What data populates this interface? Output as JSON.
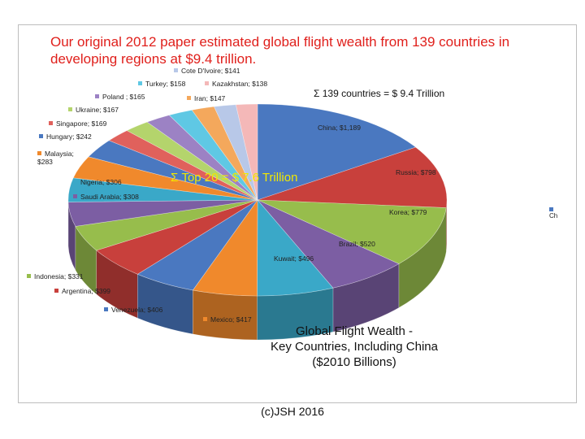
{
  "headline": "Our original 2012 paper estimated global flight wealth from 139 countries in developing regions at $9.4 trillion.",
  "annotations": {
    "total": "Σ 139 countries = $ 9.4 Trillion",
    "top20": "Σ Top 20 = $ 7.6 Trillion"
  },
  "caption": {
    "line1": "Global Flight Wealth -",
    "line2": "Key Countries, Including China",
    "line3": "($2010 Billions)"
  },
  "copyright": "(c)JSH 2016",
  "stray_legend": "Ch in",
  "chart_data": {
    "type": "pie",
    "title": "Global Flight Wealth - Key Countries, Including China ($2010 Billions)",
    "slices": [
      {
        "name": "China",
        "value": 1189,
        "label": "China; $1,189",
        "color": "#4a78c0"
      },
      {
        "name": "Russia",
        "value": 798,
        "label": "Russia; $798",
        "color": "#c8403c"
      },
      {
        "name": "Korea",
        "value": 779,
        "label": "Korea; $779",
        "color": "#97bd4c"
      },
      {
        "name": "Brazil",
        "value": 520,
        "label": "Brazil; $520",
        "color": "#7c5ea3"
      },
      {
        "name": "Kuwait",
        "value": 496,
        "label": "Kuwait; $496",
        "color": "#3aa8c8"
      },
      {
        "name": "Mexico",
        "value": 417,
        "label": "Mexico; $417",
        "color": "#f0892c"
      },
      {
        "name": "Venezuela",
        "value": 406,
        "label": "Venezuela; $406",
        "color": "#4a78c0"
      },
      {
        "name": "Argentina",
        "value": 399,
        "label": "Argentina; $399",
        "color": "#c8403c"
      },
      {
        "name": "Indonesia",
        "value": 331,
        "label": "Indonesia; $331",
        "color": "#97bd4c"
      },
      {
        "name": "Saudi Arabia",
        "value": 308,
        "label": "Saudi Arabia; $308",
        "color": "#7c5ea3"
      },
      {
        "name": "Nigeria",
        "value": 306,
        "label": "Nigeria; $306",
        "color": "#3aa8c8"
      },
      {
        "name": "Malaysia",
        "value": 283,
        "label": "Malaysia; $283",
        "color": "#f0892c"
      },
      {
        "name": "Hungary",
        "value": 242,
        "label": "Hungary; $242",
        "color": "#4a78c0"
      },
      {
        "name": "Singapore",
        "value": 169,
        "label": "Singapore; $169",
        "color": "#e0615c"
      },
      {
        "name": "Ukraine",
        "value": 167,
        "label": "Ukraine; $167",
        "color": "#b4d46c"
      },
      {
        "name": "Poland",
        "value": 165,
        "label": "Poland ; $165",
        "color": "#9c82c4"
      },
      {
        "name": "Turkey",
        "value": 158,
        "label": "Turkey; $158",
        "color": "#5fc8e4"
      },
      {
        "name": "Iran",
        "value": 147,
        "label": "Iran; $147",
        "color": "#f4a85c"
      },
      {
        "name": "Cote D'Ivoire",
        "value": 141,
        "label": "Cote D'Ivoire; $141",
        "color": "#b8c8e8"
      },
      {
        "name": "Kazakhstan",
        "value": 138,
        "label": "Kazakhstan; $138",
        "color": "#f4b8b8"
      }
    ]
  }
}
